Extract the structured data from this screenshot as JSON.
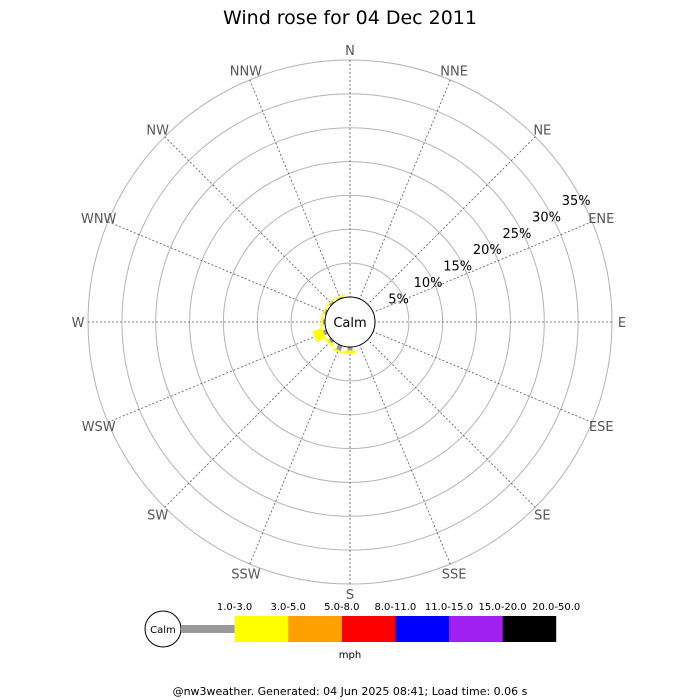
{
  "chart_data": {
    "type": "wind-rose",
    "title": "Wind rose for 04 Dec 2011",
    "directions": [
      "N",
      "NNE",
      "NE",
      "ENE",
      "E",
      "ESE",
      "SE",
      "SSE",
      "S",
      "SSW",
      "SW",
      "WSW",
      "W",
      "WNW",
      "NW",
      "NNW"
    ],
    "rings": [
      "5%",
      "10%",
      "15%",
      "20%",
      "25%",
      "30%",
      "35%"
    ],
    "ring_max_percent": 35,
    "calm_label": "Calm",
    "speed_bins": [
      {
        "range": "1.0-3.0",
        "color": "#999999"
      },
      {
        "range": "3.0-5.0",
        "color": "#ffff00"
      },
      {
        "range": "5.0-8.0",
        "color": "#ff9f00"
      },
      {
        "range": "8.0-11.0",
        "color": "#ff0000"
      },
      {
        "range": "11.0-15.0",
        "color": "#0000ff"
      },
      {
        "range": "15.0-20.0",
        "color": "#a020f0"
      },
      {
        "range": "20.0-50.0",
        "color": "#000000"
      }
    ],
    "unit": "mph",
    "data_percent": [
      [
        0,
        0,
        0,
        0,
        0,
        0,
        0
      ],
      [
        0,
        0,
        0,
        0,
        0,
        0,
        0
      ],
      [
        0,
        0,
        0,
        0,
        0,
        0,
        0
      ],
      [
        0,
        0,
        0,
        0,
        0,
        0,
        0
      ],
      [
        0,
        0,
        0,
        0,
        0,
        0,
        0
      ],
      [
        0,
        0,
        0,
        0,
        0,
        0,
        0
      ],
      [
        0,
        0,
        0,
        0,
        0,
        0,
        0
      ],
      [
        0,
        0,
        0,
        0,
        0,
        0,
        0
      ],
      [
        0.5,
        0.5,
        0,
        0,
        0,
        0,
        0
      ],
      [
        0.8,
        0.3,
        0,
        0,
        0,
        0,
        0
      ],
      [
        0.4,
        0.4,
        0,
        0,
        0,
        0,
        0
      ],
      [
        0.5,
        1.5,
        0,
        0,
        0,
        0,
        0
      ],
      [
        0.3,
        0.3,
        0,
        0,
        0,
        0,
        0
      ],
      [
        0.3,
        0.2,
        0,
        0,
        0,
        0,
        0
      ],
      [
        0.3,
        0.2,
        0,
        0,
        0,
        0,
        0
      ],
      [
        0.2,
        0.2,
        0,
        0,
        0,
        0,
        0
      ]
    ]
  },
  "footer": "@nw3weather. Generated: 04 Jun 2025 08:41; Load time: 0.06 s"
}
